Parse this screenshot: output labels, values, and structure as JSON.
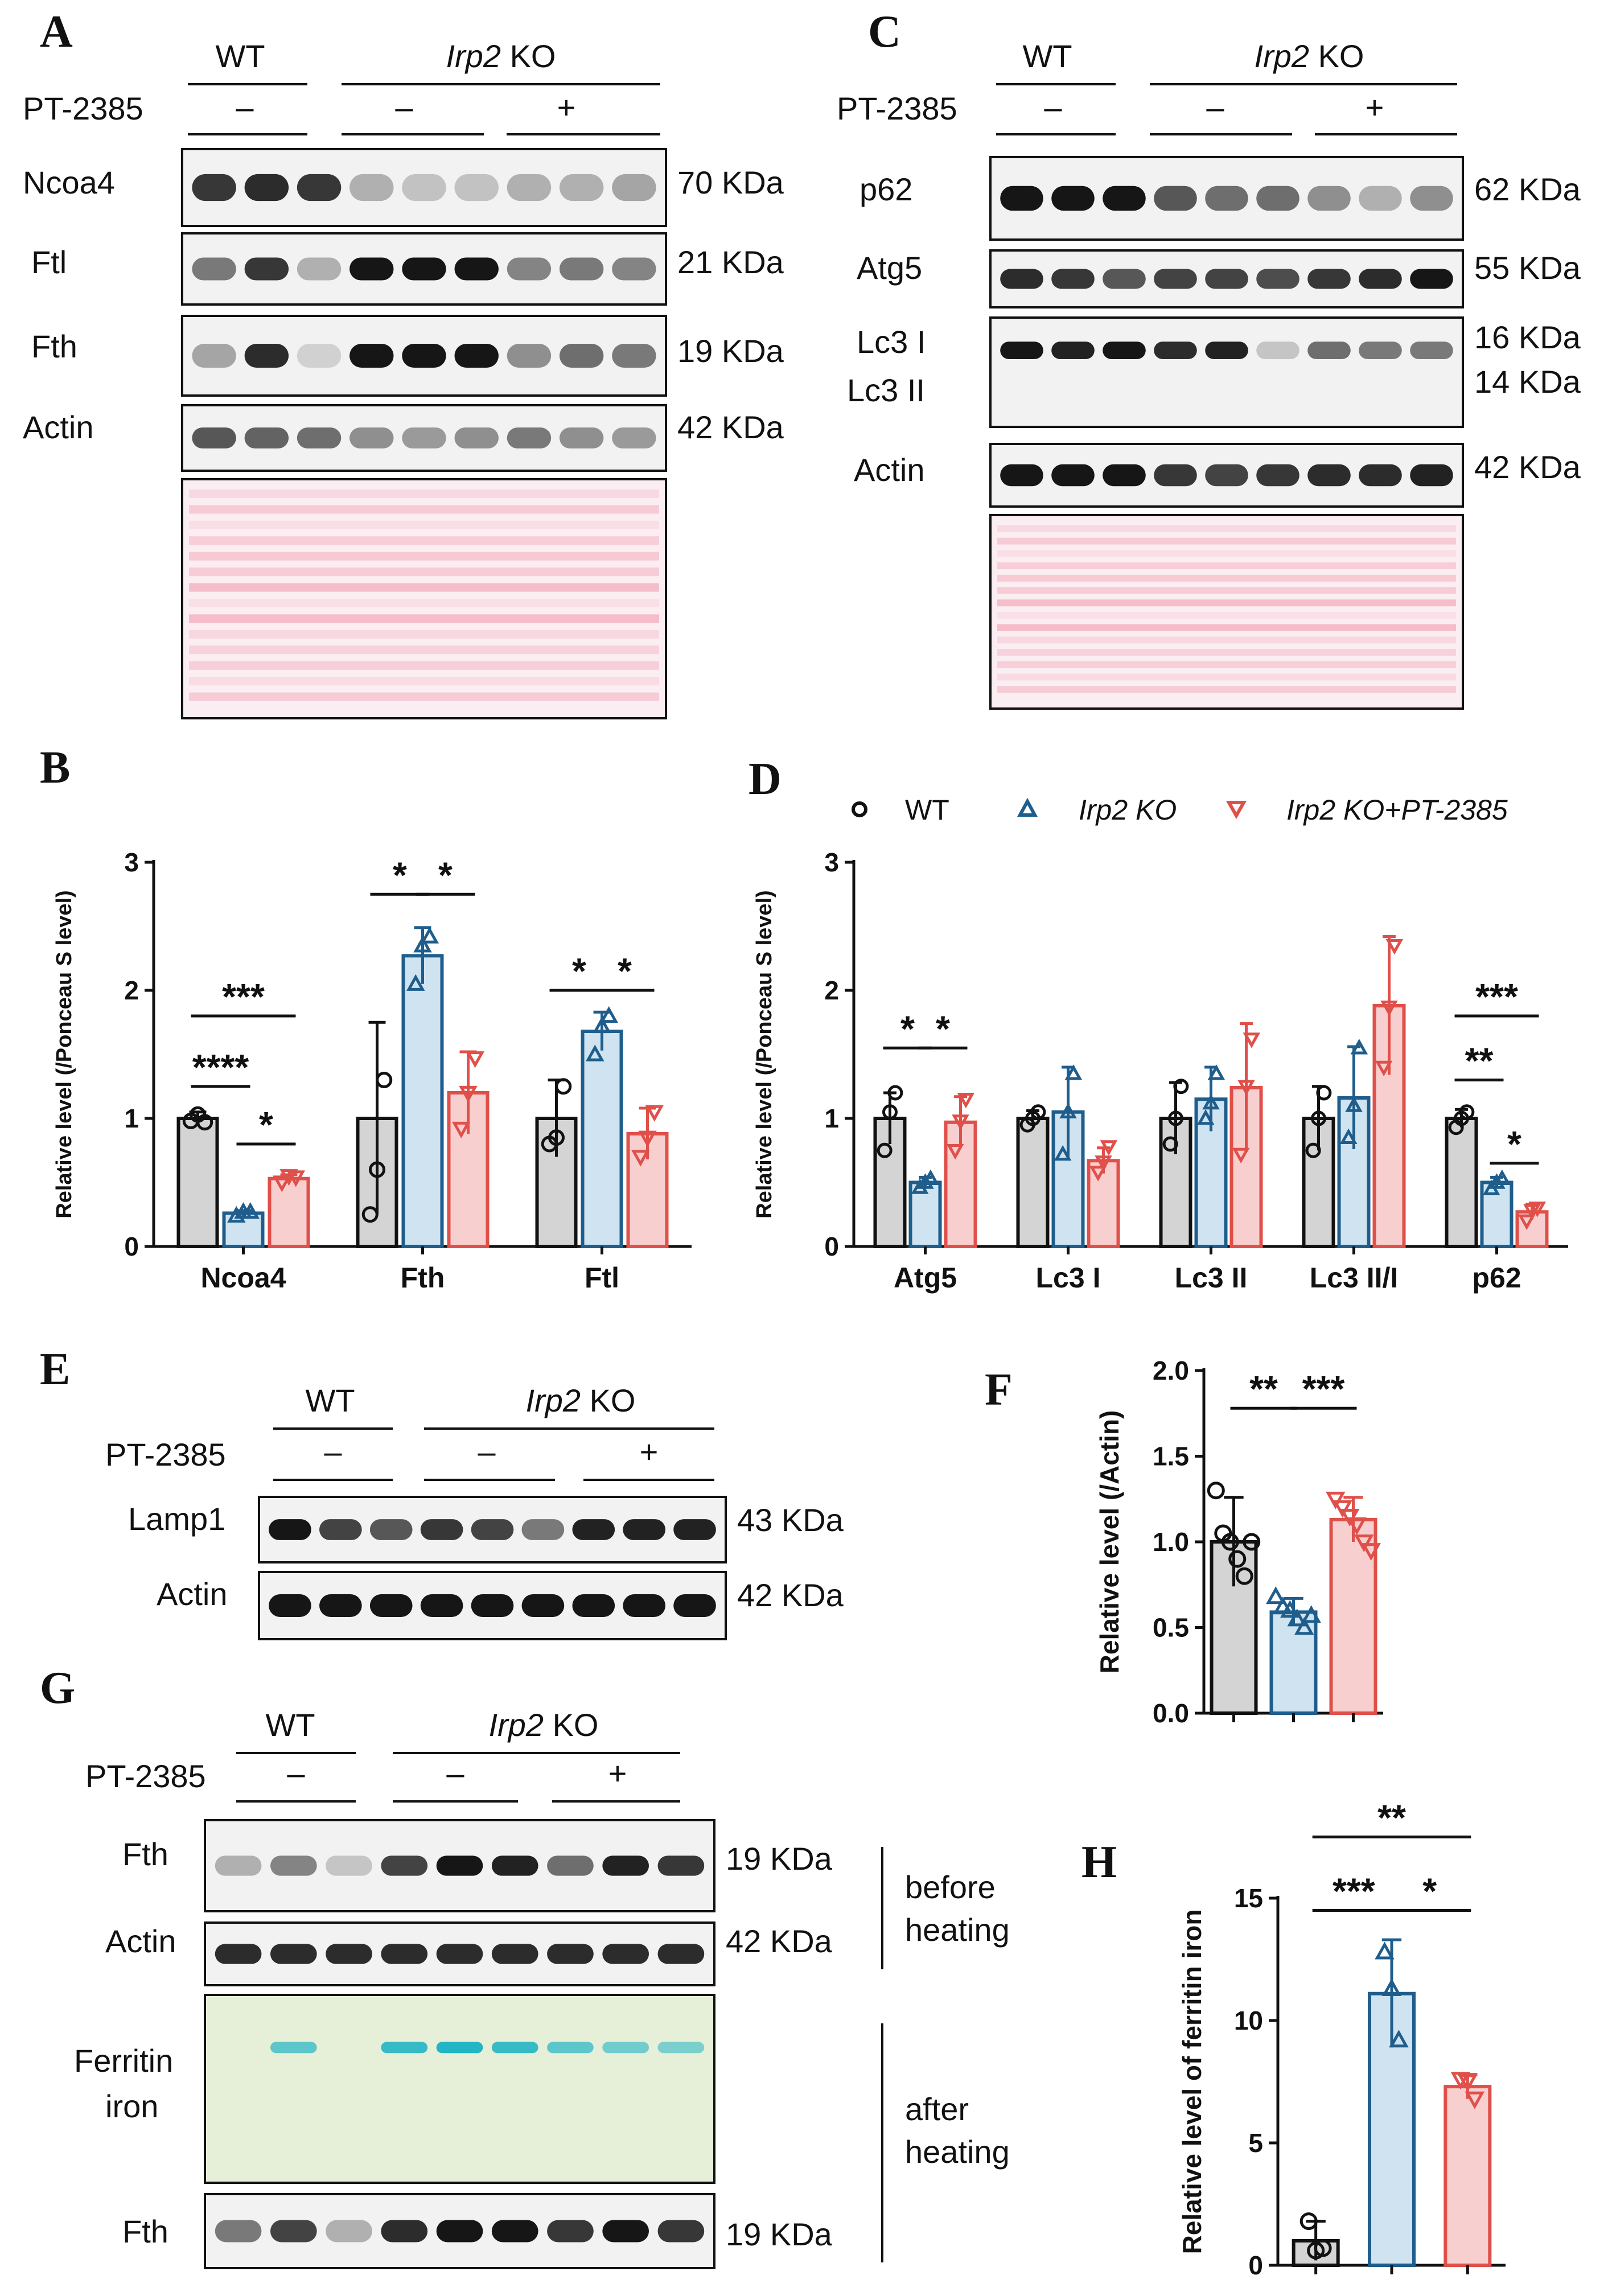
{
  "figure": {
    "panel_letters": {
      "A": "A",
      "B": "B",
      "C": "C",
      "D": "D",
      "E": "E",
      "F": "F",
      "G": "G",
      "H": "H"
    },
    "colors": {
      "wt_fill": "#d4d4d4",
      "wt_edge": "#111111",
      "ko_fill": "#cfe3f0",
      "ko_edge": "#1f5e8c",
      "pt_fill": "#f8cfcf",
      "pt_edge": "#e0504a",
      "blot_bg": "#f2f2f2",
      "band": "#161616",
      "ponceau": "#f3a5b6",
      "ferritin_bg": "#e6efd8",
      "ferritin_band": "#22b5c4"
    },
    "conditions": {
      "wt": "WT",
      "ko_gene": "Irp2",
      "ko_suffix": " KO",
      "drug": "PT-2385",
      "minus": "–",
      "plus": "+"
    },
    "panel_A": {
      "proteins": [
        "Ncoa4",
        "Ftl",
        "Fth",
        "Actin"
      ],
      "sizes": [
        "70 KDa",
        "21 KDa",
        "19 KDa",
        "42 KDa"
      ]
    },
    "panel_C": {
      "proteins": [
        "p62",
        "Atg5",
        "Lc3 I",
        "Lc3 II",
        "Actin"
      ],
      "sizes": [
        "62 KDa",
        "55 KDa",
        "16 KDa",
        "14 KDa",
        "42 KDa"
      ]
    },
    "panel_E": {
      "proteins": [
        "Lamp1",
        "Actin"
      ],
      "sizes": [
        "43 KDa",
        "42 KDa"
      ]
    },
    "panel_G": {
      "proteins": [
        "Fth",
        "Actin",
        "Ferritin",
        "iron",
        "Fth"
      ],
      "sizes": [
        "19 KDa",
        "42 KDa",
        "19 KDa"
      ],
      "side_labels": [
        "before",
        "heating",
        "after",
        "heating"
      ]
    }
  },
  "chart_data": [
    {
      "panel": "B",
      "type": "bar",
      "ylabel": "Relative level (/Ponceau S level)",
      "ylim": [
        0,
        3
      ],
      "yticks": [
        "0",
        "1",
        "2",
        "3"
      ],
      "categories": [
        "Ncoa4",
        "Fth",
        "Ftl"
      ],
      "series": [
        {
          "name": "WT",
          "values": [
            1.0,
            1.0,
            1.0
          ],
          "sd": [
            0.05,
            0.75,
            0.3
          ],
          "points": [
            [
              0.98,
              1.03,
              0.97
            ],
            [
              0.25,
              0.6,
              1.3
            ],
            [
              0.8,
              0.85,
              1.25
            ]
          ]
        },
        {
          "name": "Irp2 KO",
          "values": [
            0.26,
            2.27,
            1.68
          ],
          "sd": [
            0.02,
            0.22,
            0.15
          ],
          "points": [
            [
              0.24,
              0.27,
              0.27
            ],
            [
              2.05,
              2.35,
              2.42
            ],
            [
              1.5,
              1.72,
              1.8
            ]
          ]
        },
        {
          "name": "Irp2 KO+PT-2385",
          "values": [
            0.53,
            1.2,
            0.88
          ],
          "sd": [
            0.03,
            0.32,
            0.2
          ],
          "points": [
            [
              0.5,
              0.55,
              0.54
            ],
            [
              0.92,
              1.2,
              1.47
            ],
            [
              0.7,
              0.85,
              1.05
            ]
          ]
        }
      ],
      "significance": [
        {
          "label": "****",
          "cat": 0,
          "from": 0,
          "to": 1,
          "y": 1.25
        },
        {
          "label": "*",
          "cat": 0,
          "from": 1,
          "to": 2,
          "y": 0.8
        },
        {
          "label": "***",
          "cat": 0,
          "from": 0,
          "to": 2,
          "y": 1.8
        },
        {
          "label": "*",
          "cat": 1,
          "from": 0,
          "to": 1,
          "y": 2.75
        },
        {
          "label": "*",
          "cat": 1,
          "from": 1,
          "to": 2,
          "y": 2.75
        },
        {
          "label": "*",
          "cat": 2,
          "from": 0,
          "to": 1,
          "y": 2.0
        },
        {
          "label": "*",
          "cat": 2,
          "from": 1,
          "to": 2,
          "y": 2.0
        }
      ]
    },
    {
      "panel": "D",
      "type": "bar",
      "ylabel": "Relative level (/Ponceau S level)",
      "ylim": [
        0,
        3
      ],
      "yticks": [
        "0",
        "1",
        "2",
        "3"
      ],
      "legend": [
        "WT",
        "Irp2 KO",
        "Irp2 KO+PT-2385"
      ],
      "categories": [
        "Atg5",
        "Lc3 I",
        "Lc3 II",
        "Lc3 II/I",
        "p62"
      ],
      "series": [
        {
          "name": "WT",
          "values": [
            1.0,
            1.0,
            1.0,
            1.0,
            1.0
          ],
          "sd": [
            0.2,
            0.06,
            0.28,
            0.25,
            0.07
          ],
          "points": [
            [
              0.75,
              1.05,
              1.2
            ],
            [
              0.95,
              1.0,
              1.05
            ],
            [
              0.8,
              1.0,
              1.25
            ],
            [
              0.75,
              1.0,
              1.2
            ],
            [
              0.93,
              1.0,
              1.05
            ]
          ]
        },
        {
          "name": "Irp2 KO",
          "values": [
            0.5,
            1.05,
            1.15,
            1.16,
            0.5
          ],
          "sd": [
            0.04,
            0.35,
            0.25,
            0.4,
            0.04
          ],
          "points": [
            [
              0.46,
              0.5,
              0.53
            ],
            [
              0.72,
              1.05,
              1.35
            ],
            [
              1.0,
              1.12,
              1.35
            ],
            [
              0.85,
              1.1,
              1.55
            ],
            [
              0.45,
              0.5,
              0.53
            ]
          ]
        },
        {
          "name": "Irp2 KO+PT-2385",
          "values": [
            0.97,
            0.67,
            1.24,
            1.88,
            0.27
          ],
          "sd": [
            0.2,
            0.1,
            0.5,
            0.54,
            0.06
          ],
          "points": [
            [
              0.75,
              0.98,
              1.15
            ],
            [
              0.58,
              0.66,
              0.78
            ],
            [
              0.72,
              1.25,
              1.62
            ],
            [
              1.4,
              1.87,
              2.35
            ],
            [
              0.2,
              0.28,
              0.3
            ]
          ]
        }
      ],
      "significance": [
        {
          "label": "*",
          "cat": 0,
          "from": 0,
          "to": 1,
          "y": 1.55
        },
        {
          "label": "*",
          "cat": 0,
          "from": 1,
          "to": 2,
          "y": 1.55
        },
        {
          "label": "**",
          "cat": 4,
          "from": 0,
          "to": 1,
          "y": 1.3
        },
        {
          "label": "*",
          "cat": 4,
          "from": 1,
          "to": 2,
          "y": 0.65
        },
        {
          "label": "***",
          "cat": 4,
          "from": 0,
          "to": 2,
          "y": 1.8
        }
      ]
    },
    {
      "panel": "F",
      "type": "bar",
      "ylabel": "Relative level (/Actin)",
      "ylim": [
        0,
        2
      ],
      "yticks": [
        "0.0",
        "0.5",
        "1.0",
        "1.5",
        "2.0"
      ],
      "categories": [
        "WT",
        "Irp2 KO",
        "Irp2 KO+PT-2385"
      ],
      "values": [
        1.0,
        0.59,
        1.13
      ],
      "sd": [
        0.26,
        0.08,
        0.13
      ],
      "points": [
        [
          1.3,
          1.05,
          1.0,
          0.9,
          0.8,
          1.0
        ],
        [
          0.68,
          0.62,
          0.6,
          0.55,
          0.5,
          0.57
        ],
        [
          1.25,
          1.2,
          1.15,
          1.1,
          1.0,
          0.95
        ]
      ],
      "significance": [
        {
          "label": "**",
          "from": 0,
          "to": 1,
          "y": 1.78
        },
        {
          "label": "***",
          "from": 1,
          "to": 2,
          "y": 1.78
        }
      ]
    },
    {
      "panel": "H",
      "type": "bar",
      "ylabel": "Relative level of ferritin iron",
      "ylim": [
        0,
        15
      ],
      "yticks": [
        "0",
        "5",
        "10",
        "15"
      ],
      "categories": [
        "WT",
        "Irp2 KO",
        "Irp2 KO+PT-2385"
      ],
      "values": [
        1.0,
        11.1,
        7.3
      ],
      "sd": [
        0.8,
        2.2,
        0.5
      ],
      "points": [
        [
          1.8,
          0.6,
          0.7
        ],
        [
          12.8,
          11.3,
          9.2
        ],
        [
          7.6,
          7.5,
          6.8
        ]
      ],
      "significance": [
        {
          "label": "***",
          "from": 0,
          "to": 1,
          "y": 14.5
        },
        {
          "label": "*",
          "from": 1,
          "to": 2,
          "y": 14.5
        },
        {
          "label": "**",
          "from": 0,
          "to": 2,
          "y": 17.5
        }
      ]
    }
  ]
}
